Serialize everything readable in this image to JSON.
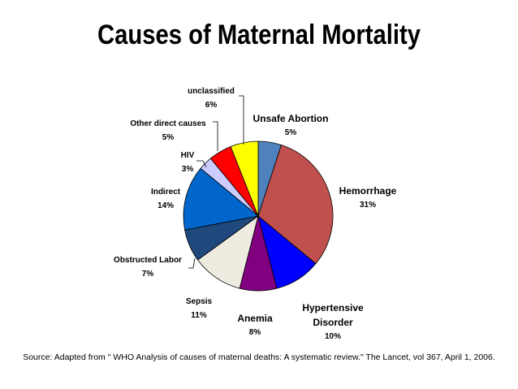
{
  "chart_data": {
    "type": "pie",
    "title": "Causes of Maternal Mortality",
    "slices": [
      {
        "label": "Unsafe Abortion",
        "value": 5,
        "value_label": "5%",
        "color": "#4f81bd"
      },
      {
        "label": "Hemorrhage",
        "value": 31,
        "value_label": "31%",
        "color": "#c0504d"
      },
      {
        "label": "Hypertensive Disorder",
        "value": 10,
        "value_label": "10%",
        "color": "#0000ff"
      },
      {
        "label": "Anemia",
        "value": 8,
        "value_label": "8%",
        "color": "#800080"
      },
      {
        "label": "Sepsis",
        "value": 11,
        "value_label": "11%",
        "color": "#eeece1"
      },
      {
        "label": "Obstructed Labor",
        "value": 7,
        "value_label": "7%",
        "color": "#1f497d"
      },
      {
        "label": "Indirect",
        "value": 14,
        "value_label": "14%",
        "color": "#0066cc"
      },
      {
        "label": "HIV",
        "value": 3,
        "value_label": "3%",
        "color": "#ccccff"
      },
      {
        "label": "Other direct causes",
        "value": 5,
        "value_label": "5%",
        "color": "#ff0000"
      },
      {
        "label": "unclassified",
        "value": 6,
        "value_label": "6%",
        "color": "#ffff00"
      }
    ]
  },
  "labels": {
    "hypertensive_line1": "Hypertensive",
    "hypertensive_line2": "Disorder"
  },
  "source": "Source: Adapted from \" WHO Analysis of causes of maternal deaths: A systematic review.\" The Lancet, vol 367, April 1, 2006."
}
